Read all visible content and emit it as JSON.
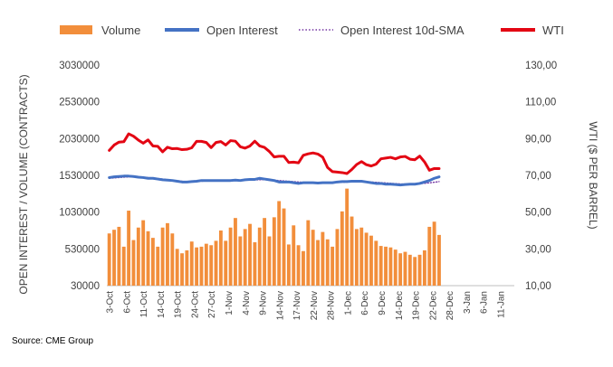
{
  "chart_data": {
    "type": "bar-line-combo",
    "legend": {
      "placement": "top",
      "items": [
        {
          "label": "Volume",
          "kind": "bar",
          "color": "#F28E3B"
        },
        {
          "label": "Open Interest",
          "kind": "line",
          "color": "#4472C4"
        },
        {
          "label": "Open Interest 10d-SMA",
          "kind": "dotted-line",
          "color": "#7030A0"
        },
        {
          "label": "WTI",
          "kind": "line",
          "color": "#E30613"
        }
      ]
    },
    "ylabel_left": "OPEN INTEREST / VOLUME (CONTRACTS)",
    "ylabel_right": "WTI ($ PER BARREL)",
    "y_left_ticks": [
      "30000",
      "530000",
      "1030000",
      "1530000",
      "2030000",
      "2530000",
      "3030000"
    ],
    "y_left_range": [
      30000,
      3030000
    ],
    "y_right_ticks": [
      "10,00",
      "30,00",
      "50,00",
      "70,00",
      "90,00",
      "110,00",
      "130,00"
    ],
    "y_right_range": [
      10,
      130
    ],
    "x_ticks": [
      "3-Oct",
      "6-Oct",
      "11-Oct",
      "14-Oct",
      "19-Oct",
      "24-Oct",
      "27-Oct",
      "1-Nov",
      "4-Nov",
      "9-Nov",
      "14-Nov",
      "17-Nov",
      "22-Nov",
      "28-Nov",
      "1-Dec",
      "6-Dec",
      "9-Dec",
      "14-Dec",
      "19-Dec",
      "22-Dec",
      "28-Dec",
      "3-Jan",
      "6-Jan",
      "11-Jan"
    ],
    "grid": false,
    "series": [
      {
        "name": "Volume",
        "values": [
          740000,
          790000,
          830000,
          560000,
          1050000,
          650000,
          820000,
          920000,
          770000,
          680000,
          560000,
          820000,
          880000,
          740000,
          530000,
          470000,
          510000,
          630000,
          550000,
          560000,
          600000,
          580000,
          640000,
          780000,
          640000,
          820000,
          950000,
          700000,
          800000,
          870000,
          620000,
          820000,
          950000,
          700000,
          960000,
          1180000,
          1080000,
          590000,
          850000,
          580000,
          500000,
          920000,
          790000,
          650000,
          760000,
          660000,
          560000,
          800000,
          1040000,
          1350000,
          970000,
          800000,
          820000,
          750000,
          710000,
          640000,
          570000,
          560000,
          550000,
          520000,
          470000,
          490000,
          450000,
          420000,
          450000,
          510000,
          830000,
          900000,
          720000
        ]
      },
      {
        "name": "Open Interest",
        "values": [
          1500000,
          1510000,
          1515000,
          1520000,
          1520000,
          1515000,
          1505000,
          1500000,
          1490000,
          1490000,
          1480000,
          1470000,
          1465000,
          1460000,
          1450000,
          1440000,
          1440000,
          1445000,
          1450000,
          1460000,
          1460000,
          1460000,
          1460000,
          1460000,
          1460000,
          1460000,
          1465000,
          1460000,
          1470000,
          1475000,
          1475000,
          1490000,
          1480000,
          1470000,
          1460000,
          1440000,
          1440000,
          1440000,
          1430000,
          1420000,
          1430000,
          1430000,
          1430000,
          1425000,
          1430000,
          1430000,
          1430000,
          1440000,
          1445000,
          1445000,
          1450000,
          1450000,
          1450000,
          1440000,
          1430000,
          1420000,
          1420000,
          1410000,
          1410000,
          1405000,
          1400000,
          1405000,
          1410000,
          1410000,
          1420000,
          1440000,
          1460000,
          1490000,
          1510000
        ]
      },
      {
        "name": "Open Interest 10d-SMA",
        "values": [
          1490000,
          1495000,
          1500000,
          1505000,
          1508000,
          1510000,
          1508000,
          1505000,
          1500000,
          1495000,
          1488000,
          1480000,
          1472000,
          1465000,
          1458000,
          1450000,
          1447000,
          1446000,
          1447000,
          1450000,
          1452000,
          1455000,
          1457000,
          1458000,
          1459000,
          1460000,
          1461000,
          1462000,
          1464000,
          1466000,
          1468000,
          1470000,
          1470000,
          1468000,
          1465000,
          1460000,
          1455000,
          1450000,
          1445000,
          1440000,
          1436000,
          1433000,
          1431000,
          1430000,
          1430000,
          1430000,
          1431000,
          1433000,
          1436000,
          1438000,
          1440000,
          1442000,
          1443000,
          1442000,
          1440000,
          1436000,
          1432000,
          1427000,
          1422000,
          1418000,
          1414000,
          1412000,
          1412000,
          1413000,
          1416000,
          1421000,
          1428000,
          1436000,
          1445000
        ]
      },
      {
        "name": "WTI",
        "values": [
          83.6,
          86.5,
          88.1,
          88.3,
          92.6,
          91.3,
          89.2,
          87.5,
          89.3,
          86.0,
          85.8,
          82.8,
          85.3,
          84.5,
          84.6,
          84.0,
          84.2,
          85.0,
          88.5,
          88.5,
          87.9,
          85.1,
          87.9,
          88.4,
          86.5,
          88.9,
          88.6,
          85.6,
          84.8,
          86.0,
          88.6,
          86.0,
          85.2,
          83.0,
          80.0,
          80.4,
          80.4,
          77.0,
          77.2,
          76.8,
          80.9,
          81.7,
          82.2,
          81.6,
          79.9,
          74.3,
          72.0,
          71.8,
          71.5,
          71.0,
          73.2,
          75.9,
          77.5,
          75.8,
          75.1,
          76.1,
          79.0,
          79.4,
          79.8,
          79.0,
          80.0,
          80.3,
          78.8,
          78.5,
          80.5,
          77.3,
          72.8,
          73.7,
          73.7
        ]
      }
    ]
  },
  "source": "Source: CME Group"
}
